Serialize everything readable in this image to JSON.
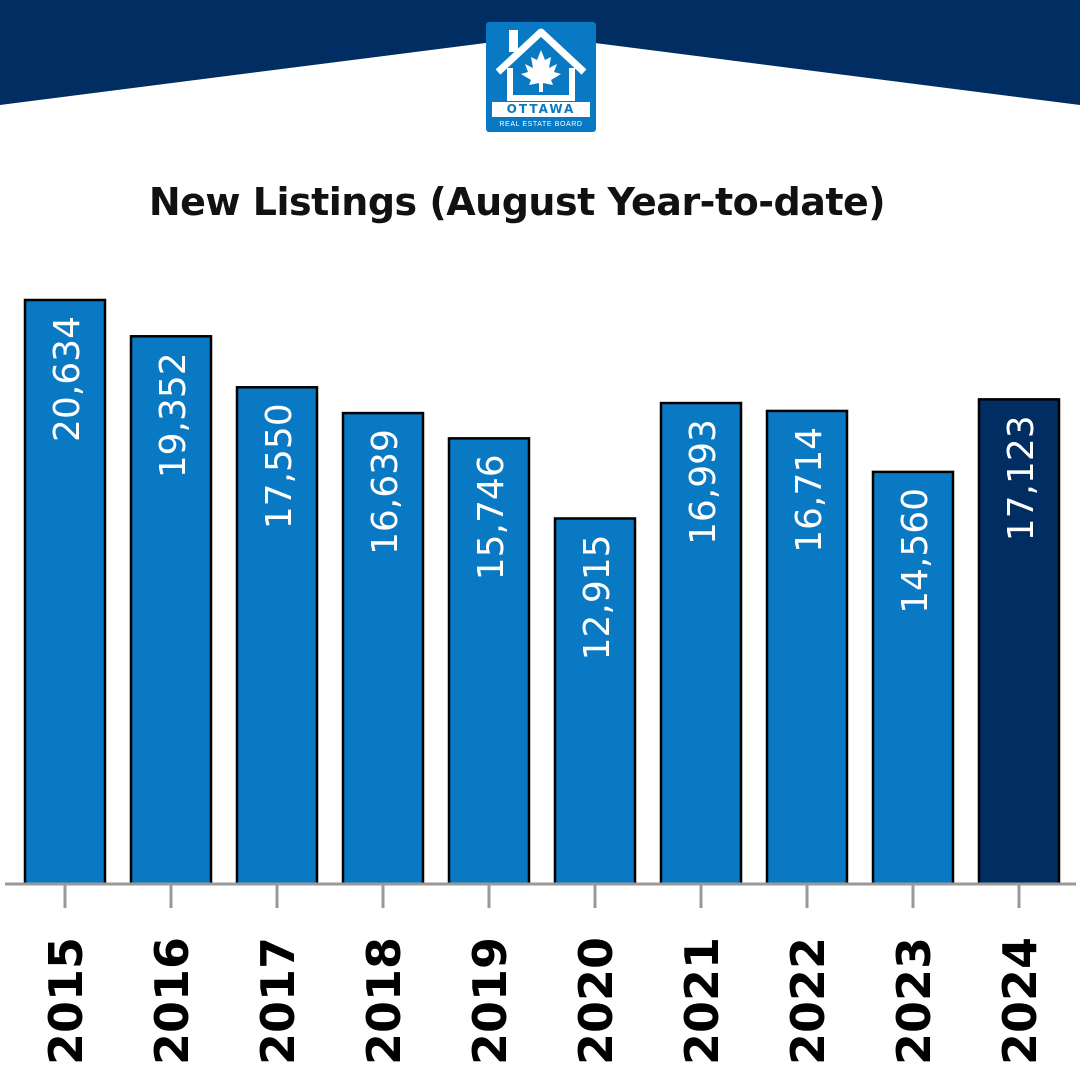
{
  "header": {
    "logo": {
      "icon": "house-maple-leaf-icon",
      "wordmark": "OTTAWA",
      "subline": "REAL ESTATE BOARD"
    },
    "colors": {
      "banner": "#002d62",
      "logo_bg": "#0a79c4"
    }
  },
  "chart_data": {
    "type": "bar",
    "title": "New Listings (August Year-to-date)",
    "xlabel": "",
    "ylabel": "",
    "categories": [
      "2015",
      "2016",
      "2017",
      "2018",
      "2019",
      "2020",
      "2021",
      "2022",
      "2023",
      "2024"
    ],
    "values": [
      20634,
      19352,
      17550,
      16639,
      15746,
      12915,
      16993,
      16714,
      14560,
      17123
    ],
    "value_labels": [
      "20,634",
      "19,352",
      "17,550",
      "16,639",
      "15,746",
      "12,915",
      "16,993",
      "16,714",
      "14,560",
      "17,123"
    ],
    "ylim": [
      0,
      20634
    ],
    "grid": false,
    "legend": "none",
    "colors": {
      "bar": "#0a79c4",
      "highlight": "#002d62",
      "highlight_category": "2024"
    }
  }
}
